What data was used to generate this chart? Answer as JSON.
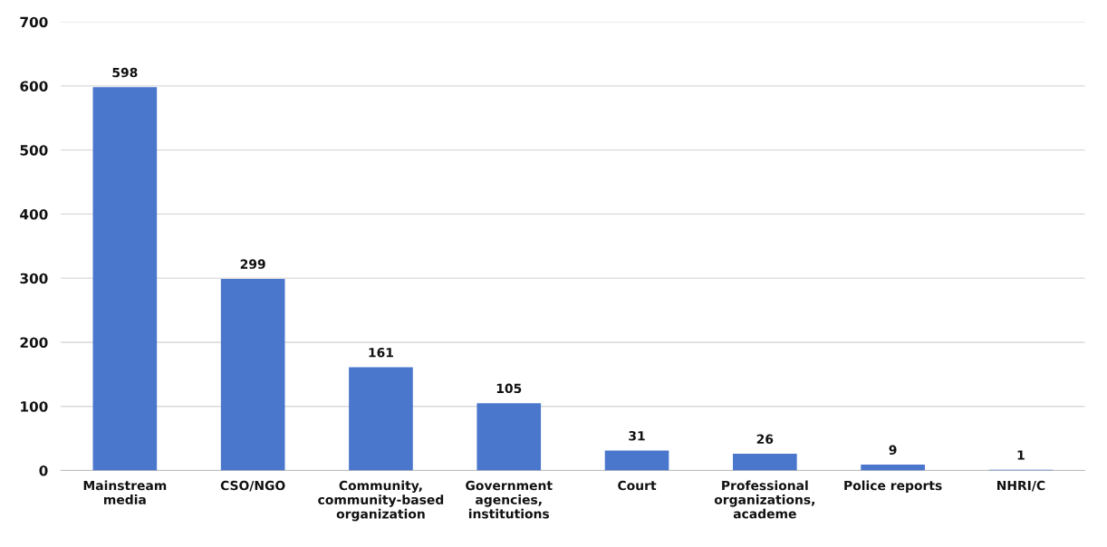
{
  "chart_data": {
    "type": "bar",
    "categories": [
      "Mainstream\nmedia",
      "CSO/NGO",
      "Community,\ncommunity-based\norganization",
      "Government\nagencies,\ninstitutions",
      "Court",
      "Professional\norganizations,\nacademe",
      "Police reports",
      "NHRI/C"
    ],
    "values": [
      598,
      299,
      161,
      105,
      31,
      26,
      9,
      1
    ],
    "color": "#4a76cc",
    "ylim": [
      0,
      700
    ],
    "yticks": [
      0,
      100,
      200,
      300,
      400,
      500,
      600,
      700
    ],
    "grid": "y",
    "data_labels": true
  }
}
